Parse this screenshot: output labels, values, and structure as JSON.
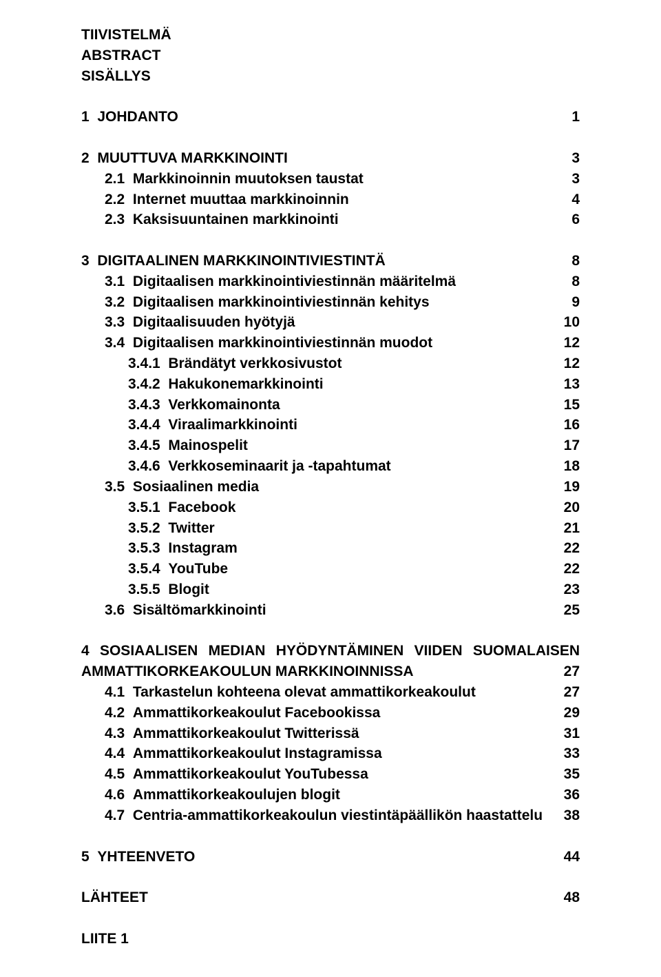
{
  "header": {
    "l1": "TIIVISTELMÄ",
    "l2": "ABSTRACT",
    "l3": "SISÄLLYS"
  },
  "s1": {
    "num": "1",
    "title": "JOHDANTO",
    "page": "1"
  },
  "s2": {
    "num": "2",
    "title": "MUUTTUVA MARKKINOINTI",
    "page": "3",
    "i1": {
      "num": "2.1",
      "title": "Markkinoinnin muutoksen taustat",
      "page": "3"
    },
    "i2": {
      "num": "2.2",
      "title": "Internet muuttaa markkinoinnin",
      "page": "4"
    },
    "i3": {
      "num": "2.3",
      "title": "Kaksisuuntainen markkinointi",
      "page": "6"
    }
  },
  "s3": {
    "num": "3",
    "title": "DIGITAALINEN MARKKINOINTIVIESTINTÄ",
    "page": "8",
    "i1": {
      "num": "3.1",
      "title": "Digitaalisen markkinointiviestinnän määritelmä",
      "page": "8"
    },
    "i2": {
      "num": "3.2",
      "title": "Digitaalisen markkinointiviestinnän kehitys",
      "page": "9"
    },
    "i3": {
      "num": "3.3",
      "title": "Digitaalisuuden hyötyjä",
      "page": "10"
    },
    "i4": {
      "num": "3.4",
      "title": "Digitaalisen markkinointiviestinnän muodot",
      "page": "12",
      "j1": {
        "num": "3.4.1",
        "title": "Brändätyt verkkosivustot",
        "page": "12"
      },
      "j2": {
        "num": "3.4.2",
        "title": "Hakukonemarkkinointi",
        "page": "13"
      },
      "j3": {
        "num": "3.4.3",
        "title": "Verkkomainonta",
        "page": "15"
      },
      "j4": {
        "num": "3.4.4",
        "title": "Viraalimarkkinointi",
        "page": "16"
      },
      "j5": {
        "num": "3.4.5",
        "title": "Mainospelit",
        "page": "17"
      },
      "j6": {
        "num": "3.4.6",
        "title": "Verkkoseminaarit ja -tapahtumat",
        "page": "18"
      }
    },
    "i5": {
      "num": "3.5",
      "title": "Sosiaalinen media",
      "page": "19",
      "j1": {
        "num": "3.5.1",
        "title": "Facebook",
        "page": "20"
      },
      "j2": {
        "num": "3.5.2",
        "title": "Twitter",
        "page": "21"
      },
      "j3": {
        "num": "3.5.3",
        "title": "Instagram",
        "page": "22"
      },
      "j4": {
        "num": "3.5.4",
        "title": "YouTube",
        "page": "22"
      },
      "j5": {
        "num": "3.5.5",
        "title": "Blogit",
        "page": "23"
      }
    },
    "i6": {
      "num": "3.6",
      "title": "Sisältömarkkinointi",
      "page": "25"
    }
  },
  "s4": {
    "line1": "4 SOSIAALISEN MEDIAN HYÖDYNTÄMINEN VIIDEN SUOMALAISEN",
    "line2_left": "AMMATTIKORKEAKOULUN MARKKINOINNISSA",
    "line2_page": "27",
    "i1": {
      "num": "4.1",
      "title": "Tarkastelun kohteena olevat ammattikorkeakoulut",
      "page": "27"
    },
    "i2": {
      "num": "4.2",
      "title": "Ammattikorkeakoulut Facebookissa",
      "page": "29"
    },
    "i3": {
      "num": "4.3",
      "title": "Ammattikorkeakoulut Twitterissä",
      "page": "31"
    },
    "i4": {
      "num": "4.4",
      "title": "Ammattikorkeakoulut Instagramissa",
      "page": "33"
    },
    "i5": {
      "num": "4.5",
      "title": "Ammattikorkeakoulut YouTubessa",
      "page": "35"
    },
    "i6": {
      "num": "4.6",
      "title": "Ammattikorkeakoulujen blogit",
      "page": "36"
    },
    "i7": {
      "num": "4.7",
      "title": "Centria-ammattikorkeakoulun viestintäpäällikön haastattelu",
      "page": "38"
    }
  },
  "s5": {
    "num": "5",
    "title": "YHTEENVETO",
    "page": "44"
  },
  "refs": {
    "title": "LÄHTEET",
    "page": "48"
  },
  "appendix": {
    "title": "LIITE 1"
  }
}
